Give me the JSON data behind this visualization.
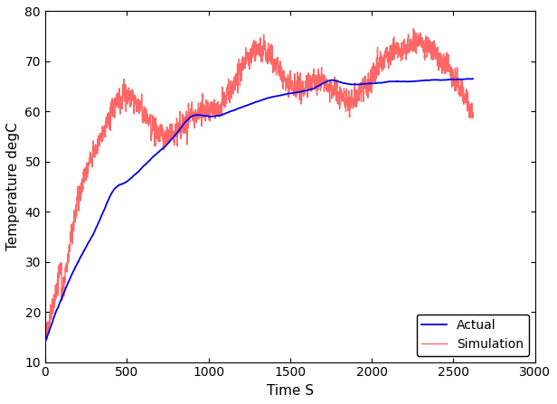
{
  "xlabel": "Time S",
  "ylabel": "Temperature degC",
  "xlim": [
    0,
    3000
  ],
  "ylim": [
    10,
    80
  ],
  "xticks": [
    0,
    500,
    1000,
    1500,
    2000,
    2500,
    3000
  ],
  "yticks": [
    10,
    20,
    30,
    40,
    50,
    60,
    70,
    80
  ],
  "actual_color": "#0000EE",
  "simulation_color": "#FF6666",
  "legend_labels": [
    "Actual",
    "Simulation"
  ],
  "background_color": "#ffffff",
  "linewidth_actual": 1.3,
  "linewidth_simulation": 1.0
}
